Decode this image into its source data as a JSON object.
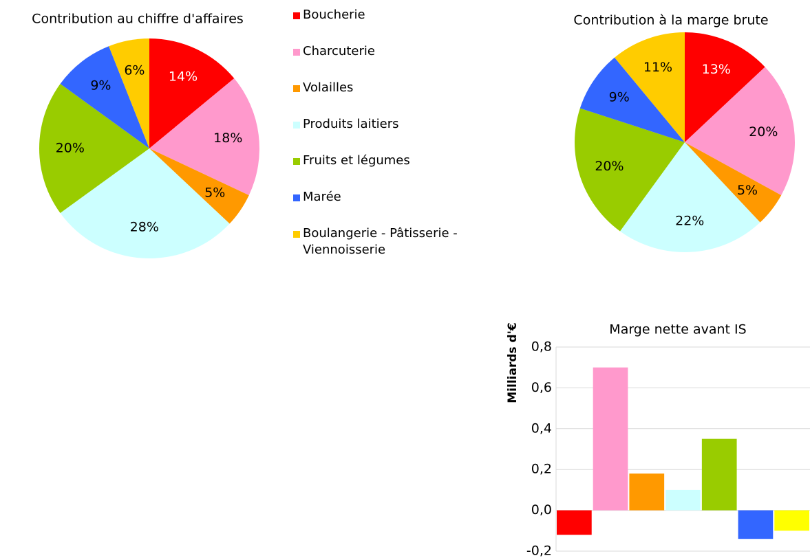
{
  "chart_data": [
    {
      "type": "pie",
      "title": "Contribution au chiffre d'affaires",
      "categories": [
        "Boucherie",
        "Charcuterie",
        "Volailles",
        "Produits laitiers",
        "Fruits et légumes",
        "Marée",
        "Boulangerie - Pâtisserie - Viennoisserie"
      ],
      "values": [
        14,
        18,
        5,
        28,
        20,
        9,
        6
      ],
      "value_labels": [
        "14%",
        "18%",
        "5%",
        "28%",
        "20%",
        "9%",
        "6%"
      ],
      "colors": [
        "#ff0000",
        "#ff99cc",
        "#ff9900",
        "#ccffff",
        "#99cc00",
        "#3366ff",
        "#ffcc00"
      ],
      "legend": "right"
    },
    {
      "type": "pie",
      "title": "Contribution à la marge brute",
      "values": [
        13,
        20,
        5,
        22,
        20,
        9,
        11
      ],
      "value_labels": [
        "13%",
        "20%",
        "5%",
        "22%",
        "20%",
        "9%",
        "11%"
      ],
      "colors": [
        "#ff0000",
        "#ff99cc",
        "#ff9900",
        "#ccffff",
        "#99cc00",
        "#3366ff",
        "#ffcc00"
      ]
    },
    {
      "type": "bar",
      "title": "Marge nette avant IS",
      "ylabel": "Milliards d'€",
      "values": [
        -0.12,
        0.7,
        0.18,
        0.1,
        0.35,
        -0.14,
        -0.1
      ],
      "colors": [
        "#ff0000",
        "#ff99cc",
        "#ff9900",
        "#ccffff",
        "#99cc00",
        "#3366ff",
        "#ffff00"
      ],
      "ylim": [
        -0.2,
        0.8
      ],
      "yticks": [
        {
          "value": -0.2,
          "label": "-0,2"
        },
        {
          "value": 0,
          "label": "0,0"
        },
        {
          "value": 0.2,
          "label": "0,2"
        },
        {
          "value": 0.4,
          "label": "0,4"
        },
        {
          "value": 0.6,
          "label": "0,6"
        },
        {
          "value": 0.8,
          "label": "0,8"
        }
      ],
      "grid": true
    }
  ]
}
